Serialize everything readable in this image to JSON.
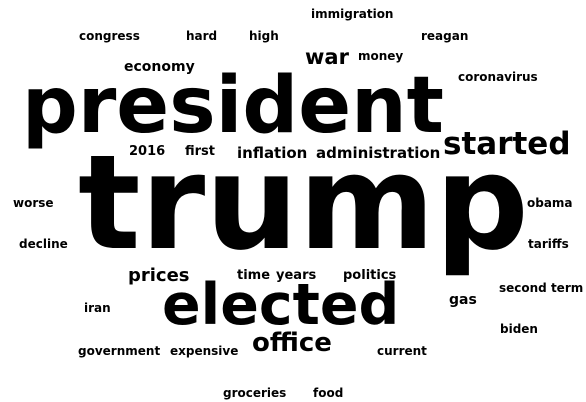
{
  "word_cloud": {
    "background_color": "#ffffff",
    "text_color": "#000000",
    "words": [
      {
        "text": "immigration"
      },
      {
        "text": "congress"
      },
      {
        "text": "hard"
      },
      {
        "text": "high"
      },
      {
        "text": "reagan"
      },
      {
        "text": "money"
      },
      {
        "text": "war"
      },
      {
        "text": "economy"
      },
      {
        "text": "coronavirus"
      },
      {
        "text": "president"
      },
      {
        "text": "started"
      },
      {
        "text": "2016"
      },
      {
        "text": "first"
      },
      {
        "text": "inflation"
      },
      {
        "text": "administration"
      },
      {
        "text": "trump"
      },
      {
        "text": "worse"
      },
      {
        "text": "obama"
      },
      {
        "text": "decline"
      },
      {
        "text": "tariffs"
      },
      {
        "text": "prices"
      },
      {
        "text": "time"
      },
      {
        "text": "years"
      },
      {
        "text": "politics"
      },
      {
        "text": "elected"
      },
      {
        "text": "gas"
      },
      {
        "text": "second term"
      },
      {
        "text": "iran"
      },
      {
        "text": "biden"
      },
      {
        "text": "office"
      },
      {
        "text": "government"
      },
      {
        "text": "expensive"
      },
      {
        "text": "current"
      },
      {
        "text": "groceries"
      },
      {
        "text": "food"
      }
    ]
  }
}
